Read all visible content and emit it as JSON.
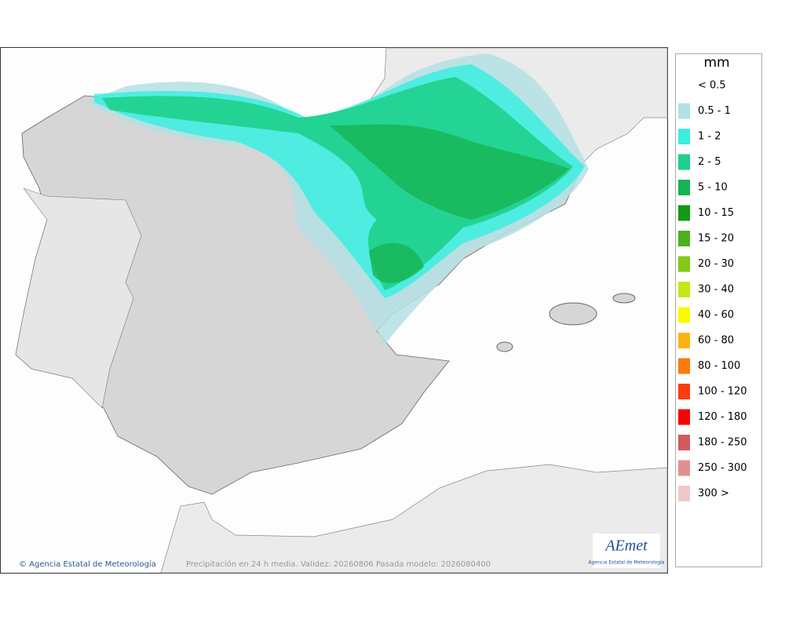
{
  "legend": {
    "title": "mm",
    "items": [
      {
        "label": "< 0.5"
      },
      {
        "label": "0.5 - 1",
        "color": "#b4e0e4"
      },
      {
        "label": "1 - 2",
        "color": "#3ceee0"
      },
      {
        "label": "2 - 5",
        "color": "#1ed08c"
      },
      {
        "label": "5 - 10",
        "color": "#16b452"
      },
      {
        "label": "10 - 15",
        "color": "#129a12"
      },
      {
        "label": "15 - 20",
        "color": "#4cb01c"
      },
      {
        "label": "20 - 30",
        "color": "#86c816"
      },
      {
        "label": "30 - 40",
        "color": "#c8e614"
      },
      {
        "label": "40 - 60",
        "color": "#fafa00"
      },
      {
        "label": "60 - 80",
        "color": "#fcb414"
      },
      {
        "label": "80 - 100",
        "color": "#fc7a0c"
      },
      {
        "label": "100 - 120",
        "color": "#fc3c0c"
      },
      {
        "label": "120 - 180",
        "color": "#fc0000"
      },
      {
        "label": "180 - 250",
        "color": "#d25a5a"
      },
      {
        "label": "250 - 300",
        "color": "#e09090"
      },
      {
        "label": "300 >",
        "color": "#f0c8c8"
      }
    ]
  },
  "footer": {
    "credit": "© Agencia Estatal de Meteorología",
    "caption": "Precipitación en 24 h media. Validez: 20260806 Pasada modelo: 2026080400"
  },
  "logo": {
    "name": "AEmet",
    "subtitle": "Agencia Estatal de Meteorología"
  }
}
